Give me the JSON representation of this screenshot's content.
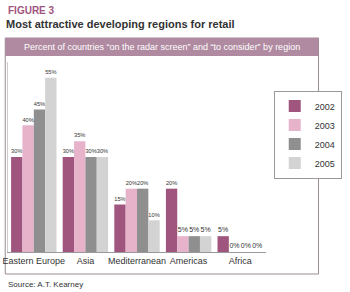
{
  "chart_data": {
    "type": "bar",
    "title": "Most attractive developing regions for retail",
    "subtitle": "Percent of countries “on the radar screen” and “to consider” by region",
    "annotations": [
      "FIGURE 3",
      "Source: A.T. Kearney"
    ],
    "categories": [
      "Eastern Europe",
      "Asia",
      "Mediterranean",
      "Americas",
      "Africa"
    ],
    "series": [
      {
        "name": "2002",
        "color": "#a0557f",
        "values": [
          30,
          30,
          15,
          20,
          5
        ],
        "value_labels": [
          "30%",
          "30%",
          "15%",
          "20%",
          "5%"
        ]
      },
      {
        "name": "2003",
        "color": "#e6b3cb",
        "values": [
          40,
          35,
          20,
          5,
          0
        ],
        "value_labels": [
          "40%",
          "35%",
          "20%",
          "5%",
          "0%"
        ]
      },
      {
        "name": "2004",
        "color": "#8f8f8f",
        "values": [
          45,
          30,
          20,
          5,
          0
        ],
        "value_labels": [
          "45%",
          "30%",
          "20%",
          "5%",
          "0%"
        ]
      },
      {
        "name": "2005",
        "color": "#d3d3d3",
        "values": [
          55,
          30,
          10,
          5,
          0
        ],
        "value_labels": [
          "55%",
          "30%",
          "10%",
          "5%",
          "0%"
        ]
      }
    ],
    "ylim": [
      0,
      60
    ],
    "grid": false,
    "legend": "right",
    "data_labels": true,
    "tick_labels": "x"
  }
}
